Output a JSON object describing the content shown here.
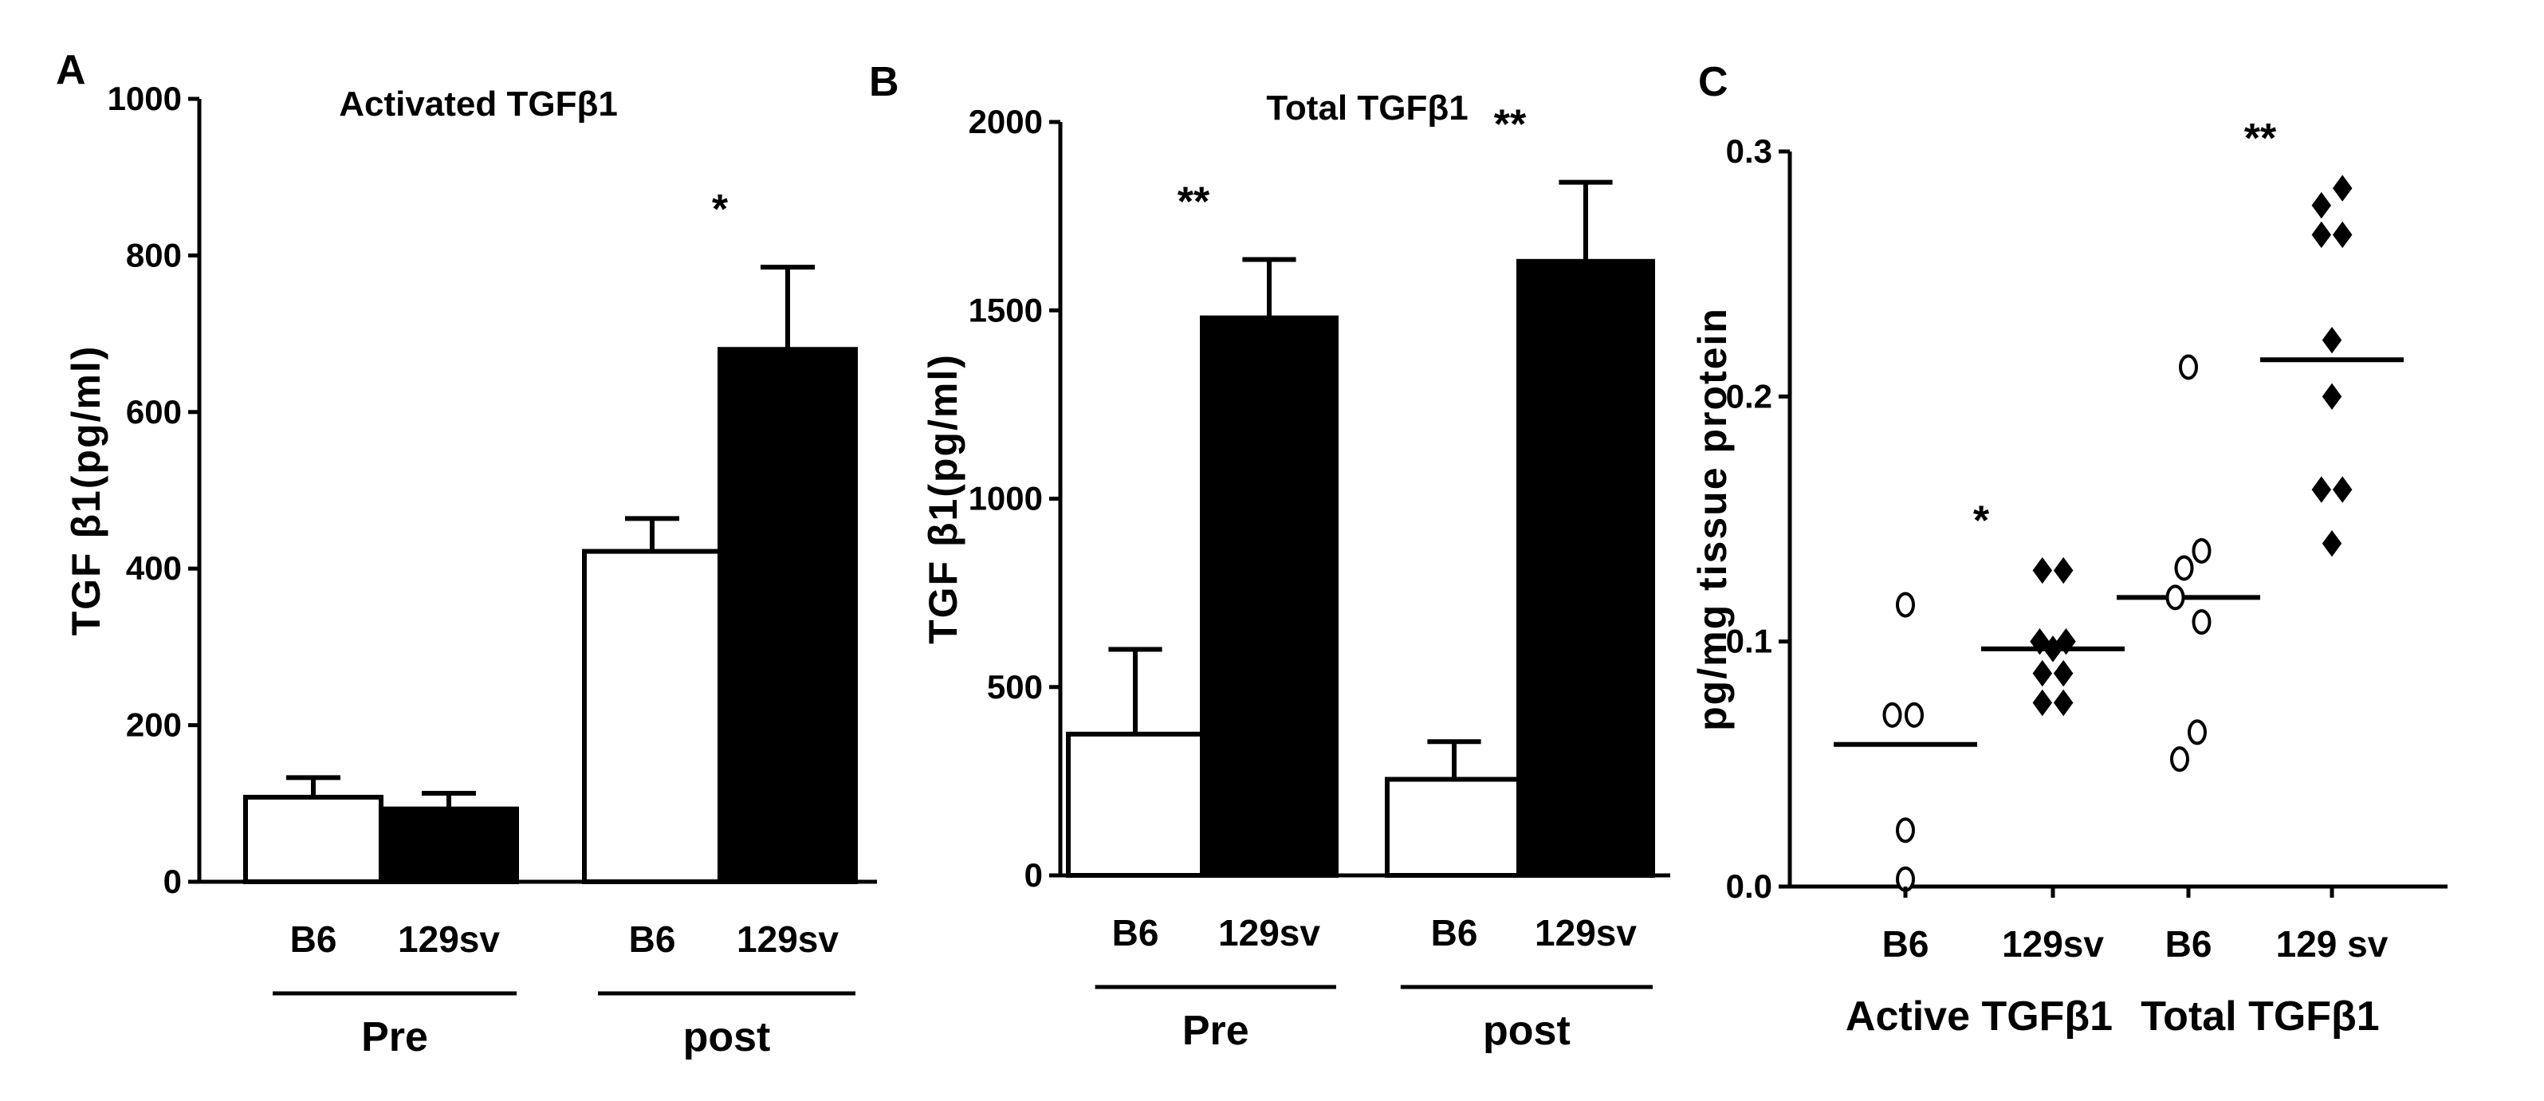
{
  "chart_data": [
    {
      "panel": "A",
      "type": "bar",
      "title": "Activated TGFβ1",
      "ylabel": "TGF  β1(pg/ml)",
      "ylim": [
        0,
        1000
      ],
      "yticks": [
        "0",
        "200",
        "400",
        "600",
        "800",
        "1000"
      ],
      "categories": [
        "B6",
        "129sv",
        "B6",
        "129sv"
      ],
      "groups": [
        {
          "label": "Pre"
        },
        {
          "label": "post"
        }
      ],
      "values": [
        108,
        93,
        422,
        680
      ],
      "errors": [
        25,
        20,
        42,
        105
      ],
      "fills": [
        "open",
        "filled",
        "open",
        "filled"
      ],
      "significance": [
        {
          "text": "*",
          "category_index": 3
        }
      ]
    },
    {
      "panel": "B",
      "type": "bar",
      "title": "Total TGFβ1",
      "ylabel": "TGF  β1(pg/ml)",
      "ylim": [
        0,
        2000
      ],
      "yticks": [
        "0",
        "500",
        "1000",
        "1500",
        "2000"
      ],
      "categories": [
        "B6",
        "129sv",
        "B6",
        "129sv"
      ],
      "groups": [
        {
          "label": "Pre"
        },
        {
          "label": "post"
        }
      ],
      "values": [
        375,
        1480,
        255,
        1630
      ],
      "errors": [
        225,
        155,
        100,
        210
      ],
      "fills": [
        "open",
        "filled",
        "open",
        "filled"
      ],
      "significance": [
        {
          "text": "**",
          "category_index": 1
        },
        {
          "text": "**",
          "category_index": 3
        }
      ]
    },
    {
      "panel": "C",
      "type": "scatter",
      "ylabel": "pg/mg tissue protein",
      "ylim": [
        0,
        0.3
      ],
      "yticks": [
        "0.0",
        "0.1",
        "0.2",
        "0.3"
      ],
      "categories": [
        "B6",
        "129sv",
        "B6",
        "129 sv"
      ],
      "groups": [
        {
          "label": "Active TGFβ1"
        },
        {
          "label": "Total TGFβ1"
        }
      ],
      "series": [
        {
          "name": "B6 active",
          "fill": "open",
          "means": 0.058,
          "points": [
            [
              0,
              0.115
            ],
            [
              -0.15,
              0.07
            ],
            [
              0.1,
              0.07
            ],
            [
              0,
              0.023
            ],
            [
              0,
              0.003
            ]
          ]
        },
        {
          "name": "129sv active",
          "fill": "filled",
          "means": 0.097,
          "points": [
            [
              -0.12,
              0.129
            ],
            [
              0.12,
              0.129
            ],
            [
              -0.15,
              0.1
            ],
            [
              0,
              0.097
            ],
            [
              0.15,
              0.1
            ],
            [
              -0.12,
              0.087
            ],
            [
              0.12,
              0.087
            ],
            [
              -0.12,
              0.075
            ],
            [
              0.12,
              0.075
            ]
          ]
        },
        {
          "name": "B6 total",
          "fill": "open",
          "means": 0.118,
          "points": [
            [
              0,
              0.212
            ],
            [
              -0.05,
              0.13
            ],
            [
              0.15,
              0.137
            ],
            [
              0.15,
              0.108
            ],
            [
              -0.15,
              0.118
            ],
            [
              0.1,
              0.063
            ],
            [
              -0.1,
              0.052
            ]
          ]
        },
        {
          "name": "129sv total",
          "fill": "filled",
          "means": 0.215,
          "points": [
            [
              -0.12,
              0.278
            ],
            [
              0.12,
              0.285
            ],
            [
              -0.12,
              0.266
            ],
            [
              0.12,
              0.266
            ],
            [
              0,
              0.223
            ],
            [
              0,
              0.2
            ],
            [
              -0.12,
              0.162
            ],
            [
              0.12,
              0.162
            ],
            [
              0,
              0.14
            ]
          ]
        }
      ],
      "significance": [
        {
          "text": "*",
          "category_index": 1
        },
        {
          "text": "**",
          "category_index": 3
        }
      ]
    }
  ],
  "panel_labels": [
    "A",
    "B",
    "C"
  ]
}
